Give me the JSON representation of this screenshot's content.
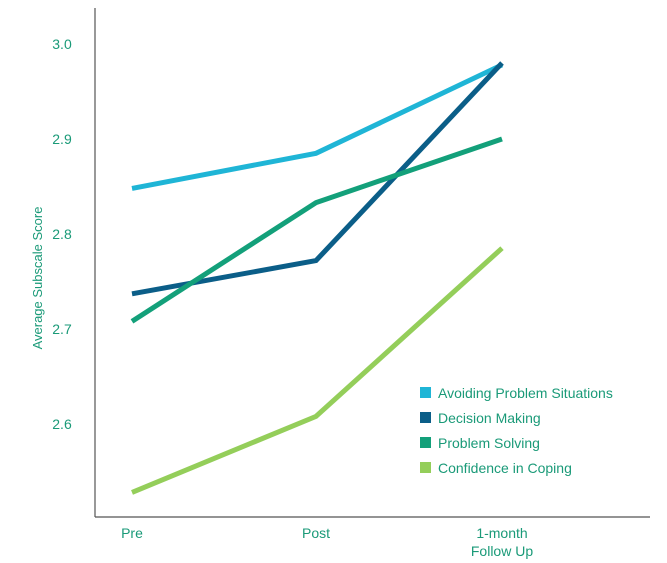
{
  "chart_data": {
    "type": "line",
    "title": "",
    "xlabel": "",
    "ylabel": "Average Subscale Score",
    "categories": [
      [
        "Pre"
      ],
      [
        "Post"
      ],
      [
        "1-month",
        "Follow Up"
      ]
    ],
    "yticks": [
      "3.0",
      "2.9",
      "2.8",
      "2.7",
      "2.6"
    ],
    "ylim": [
      2.5,
      3.04
    ],
    "grid": false,
    "legend_position": "bottom-right",
    "axis_color": "#555555",
    "series": [
      {
        "name": "Avoiding Problem Situations",
        "color": "#1fb5d6",
        "values": [
          2.848,
          2.885,
          2.978
        ]
      },
      {
        "name": "Decision Making",
        "color": "#0b5e88",
        "values": [
          2.737,
          2.772,
          2.98
        ]
      },
      {
        "name": "Problem Solving",
        "color": "#13a07a",
        "values": [
          2.708,
          2.833,
          2.9
        ]
      },
      {
        "name": "Confidence in Coping",
        "color": "#94ce5a",
        "values": [
          2.528,
          2.608,
          2.785
        ]
      }
    ]
  }
}
